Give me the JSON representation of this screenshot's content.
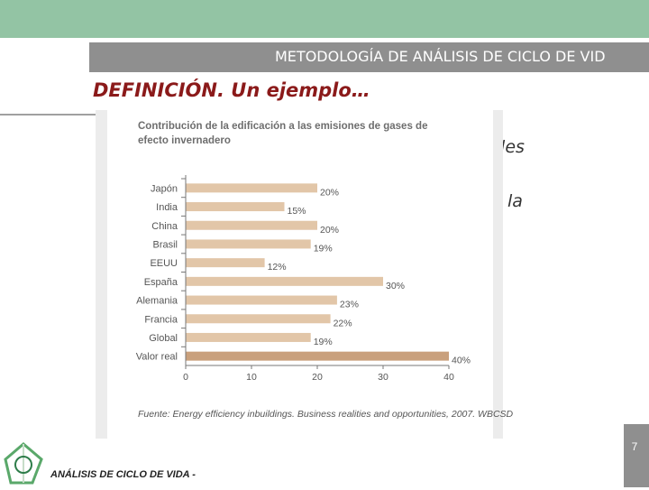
{
  "slide": {
    "header_title": "METODOLOGÍA DE ANÁLISIS DE CICLO DE VID",
    "heading": "DEFINICIÓN. Un ejemplo…",
    "body_fragment_1": "bles",
    "body_fragment_2": "s la",
    "page_number": "7",
    "footer_text": "ANÁLISIS DE CICLO DE VIDA -"
  },
  "colors": {
    "top_bar": "#93c4a4",
    "title_bar": "#8f8f8f",
    "heading": "#8b1a1a",
    "bar": "#e2c6a8",
    "bar_highlight": "#c9a07c"
  },
  "chart_data": {
    "type": "bar",
    "orientation": "horizontal",
    "title": "Contribución de la edificación a las emisiones de gases de efecto invernadero",
    "title_line1": "Contribución de la edificación a las emisiones de gases de",
    "title_line2": "efecto invernadero",
    "categories": [
      "Japón",
      "India",
      "China",
      "Brasil",
      "EEUU",
      "España",
      "Alemania",
      "Francia",
      "Global",
      "Valor real"
    ],
    "values": [
      20,
      15,
      20,
      19,
      12,
      30,
      23,
      22,
      19,
      40
    ],
    "data_labels": [
      "20%",
      "15%",
      "20%",
      "19%",
      "12%",
      "30%",
      "23%",
      "22%",
      "19%",
      "40%"
    ],
    "highlight_category": "Valor real",
    "xlim": [
      0,
      40
    ],
    "x_ticks": [
      "0",
      "10",
      "20",
      "30",
      "40"
    ],
    "grid": false,
    "source": "Fuente: Energy efficiency inbuildings. Business realities and opportunities, 2007. WBCSD"
  }
}
